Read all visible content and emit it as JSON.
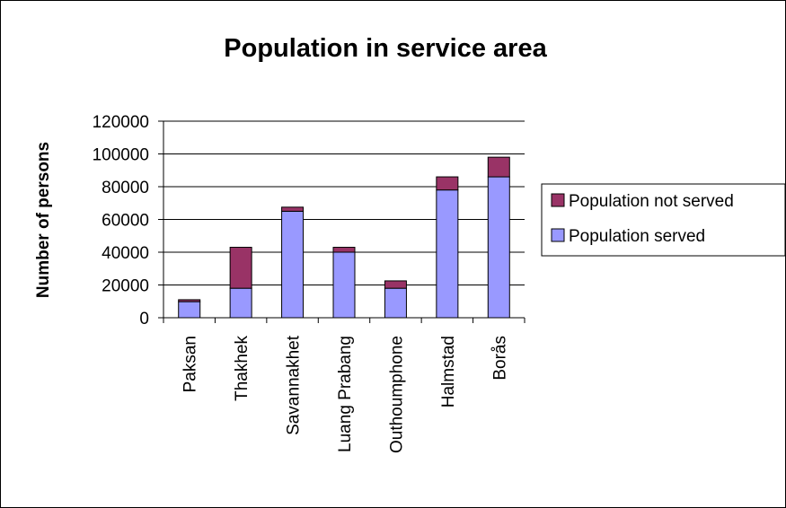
{
  "chart_data": {
    "type": "bar",
    "stacked": true,
    "title": "Population in service area",
    "xlabel": "",
    "ylabel": "Number of persons",
    "ylim": [
      0,
      120000
    ],
    "yticks": [
      0,
      20000,
      40000,
      60000,
      80000,
      100000,
      120000
    ],
    "grid": true,
    "legend_position": "right",
    "categories": [
      "Paksan",
      "Thakhek",
      "Savannakhet",
      "Luang Prabang",
      "Outhoumphone",
      "Halmstad",
      "Borås"
    ],
    "series": [
      {
        "name": "Population served",
        "color": "#9999ff",
        "values": [
          9800,
          18000,
          65000,
          40000,
          18000,
          78000,
          86000
        ]
      },
      {
        "name": "Population not served",
        "color": "#993366",
        "values": [
          1200,
          25000,
          2500,
          3000,
          4500,
          8000,
          12000
        ]
      }
    ],
    "legend": [
      "Population not served",
      "Population served"
    ]
  }
}
